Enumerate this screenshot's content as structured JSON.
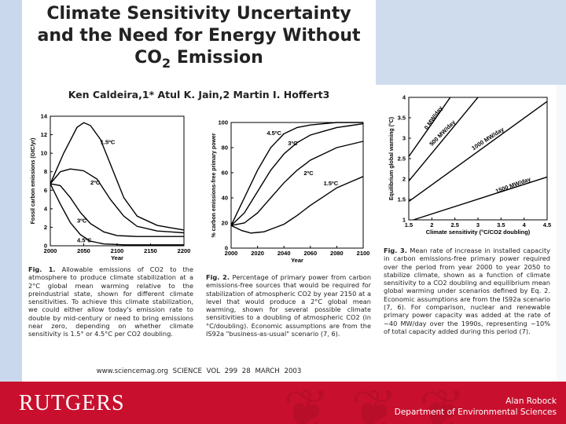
{
  "slide": {
    "title_line1": "Climate Sensitivity Uncertainty",
    "title_line2": "and the Need for Energy Without",
    "title_co2": "CO",
    "title_sub": "2",
    "title_emission": " Emission",
    "authors": "Ken Caldeira,1* Atul K. Jain,2 Martin I. Hoffert3",
    "footer": "www.sciencemag.org   SCIENCE   VOL 299   28 MARCH 2003",
    "logo_text": "RUTGERS",
    "presenter_name": "Alan Robock",
    "presenter_dept": "Department of Environmental Sciences",
    "colors": {
      "bar": "#c8102e",
      "band": "#c9d8ec",
      "curve": "#000000"
    }
  },
  "captions": {
    "fig1_lead": "Fig. 1.",
    "fig1_text": " Allowable emissions of CO2 to the atmosphere to produce climate stabilization at a 2°C global mean warming relative to the preindustrial state, shown for different climate sensitivities. To achieve this climate stabilization, we could either allow today's emission rate to double by mid-century or need to bring emissions near zero, depending on whether climate sensitivity is 1.5° or 4.5°C per CO2 doubling.",
    "fig2_lead": "Fig. 2.",
    "fig2_text": " Percentage of primary power from carbon emissions-free sources that would be required for stabilization of atmospheric CO2 by year 2150 at a level that would produce a 2°C global mean warming, shown for several possible climate sensitivities to a doubling of atmospheric CO2 (in °C/doubling). Economic assumptions are from the IS92a \"business-as-usual\" scenario (7, 6).",
    "fig3_lead": "Fig. 3.",
    "fig3_text": " Mean rate of increase in installed capacity in carbon emissions-free primary power required over the period from year 2000 to year 2050 to stabilize climate, shown as a function of climate sensitivity to a CO2 doubling and equilibrium mean global warming under scenarios defined by Eq. 2. Economic assumptions are from the IS92a scenario (7, 6). For comparison, nuclear and renewable primary power capacity was added at the rate of ~40 MW/day over the 1990s, representing ~10% of total capacity added during this period (7)."
  },
  "chart_data": [
    {
      "type": "line",
      "title": "",
      "xlabel": "Year",
      "ylabel": "Fossil carbon emissions (GtC/yr)",
      "xlim": [
        2000,
        2200
      ],
      "ylim": [
        0,
        14
      ],
      "xticks": [
        2000,
        2050,
        2100,
        2150,
        2200
      ],
      "yticks": [
        0,
        2,
        4,
        6,
        8,
        10,
        12,
        14
      ],
      "series": [
        {
          "name": "1.5ºC",
          "x": [
            2000,
            2020,
            2040,
            2050,
            2060,
            2075,
            2090,
            2110,
            2130,
            2160,
            2200
          ],
          "y": [
            6.7,
            10,
            12.8,
            13.3,
            13,
            11.5,
            8.8,
            5.2,
            3.2,
            2.2,
            1.7
          ]
        },
        {
          "name": "2ºC",
          "x": [
            2000,
            2015,
            2030,
            2050,
            2070,
            2090,
            2110,
            2130,
            2160,
            2200
          ],
          "y": [
            6.7,
            8,
            8.3,
            8.1,
            7.2,
            5,
            3.2,
            2.1,
            1.6,
            1.4
          ]
        },
        {
          "name": "3ºC",
          "x": [
            2000,
            2015,
            2030,
            2045,
            2060,
            2080,
            2100,
            2130,
            2170,
            2200
          ],
          "y": [
            6.7,
            6.5,
            5.2,
            3.6,
            2.4,
            1.5,
            1.1,
            1,
            1,
            1
          ]
        },
        {
          "name": "4.5ºC",
          "x": [
            2000,
            2015,
            2030,
            2045,
            2060,
            2080,
            2110,
            2150,
            2200
          ],
          "y": [
            6.7,
            4.5,
            2.5,
            1.2,
            0.5,
            0.2,
            0.1,
            0.1,
            0.1
          ]
        }
      ]
    },
    {
      "type": "line",
      "title": "",
      "xlabel": "Year",
      "ylabel": "% carbon emissions-free primary power",
      "xlim": [
        2000,
        2100
      ],
      "ylim": [
        0,
        100
      ],
      "xticks": [
        2000,
        2020,
        2040,
        2060,
        2080,
        2100
      ],
      "yticks": [
        0,
        20,
        40,
        60,
        80,
        100
      ],
      "series": [
        {
          "name": "4.5ºC",
          "x": [
            2000,
            2010,
            2020,
            2030,
            2040,
            2050,
            2060,
            2080,
            2100
          ],
          "y": [
            18,
            40,
            62,
            80,
            91,
            96,
            98,
            100,
            100
          ]
        },
        {
          "name": "3ºC",
          "x": [
            2000,
            2010,
            2020,
            2030,
            2040,
            2050,
            2060,
            2080,
            2100
          ],
          "y": [
            18,
            28,
            45,
            62,
            75,
            84,
            90,
            96,
            99
          ]
        },
        {
          "name": "2ºC",
          "x": [
            2000,
            2010,
            2020,
            2030,
            2040,
            2050,
            2060,
            2080,
            2100
          ],
          "y": [
            18,
            20,
            28,
            40,
            52,
            62,
            70,
            80,
            85
          ]
        },
        {
          "name": "1.5ºC",
          "x": [
            2000,
            2008,
            2015,
            2025,
            2040,
            2050,
            2060,
            2080,
            2100
          ],
          "y": [
            18,
            14,
            12,
            13,
            19,
            26,
            34,
            48,
            57
          ]
        }
      ]
    },
    {
      "type": "line",
      "title": "",
      "xlabel": "Climate sensitivity (°C/CO2 doubling)",
      "ylabel": "Equilibrium global warming (°C)",
      "xlim": [
        1.5,
        4.5
      ],
      "ylim": [
        1,
        4
      ],
      "xticks": [
        1.5,
        2,
        2.5,
        3,
        3.5,
        4,
        4.5
      ],
      "yticks": [
        1,
        1.5,
        2,
        2.5,
        3,
        3.5,
        4
      ],
      "series": [
        {
          "name": "0 MW/day",
          "x": [
            1.5,
            2.4
          ],
          "y": [
            2.55,
            4
          ]
        },
        {
          "name": "500 MW/day",
          "x": [
            1.5,
            3.0
          ],
          "y": [
            1.95,
            4
          ]
        },
        {
          "name": "1000 MW/day",
          "x": [
            1.5,
            4.5
          ],
          "y": [
            1.45,
            3.9
          ]
        },
        {
          "name": "1500 MW/day",
          "x": [
            1.6,
            4.5
          ],
          "y": [
            1,
            2.05
          ]
        }
      ]
    }
  ]
}
